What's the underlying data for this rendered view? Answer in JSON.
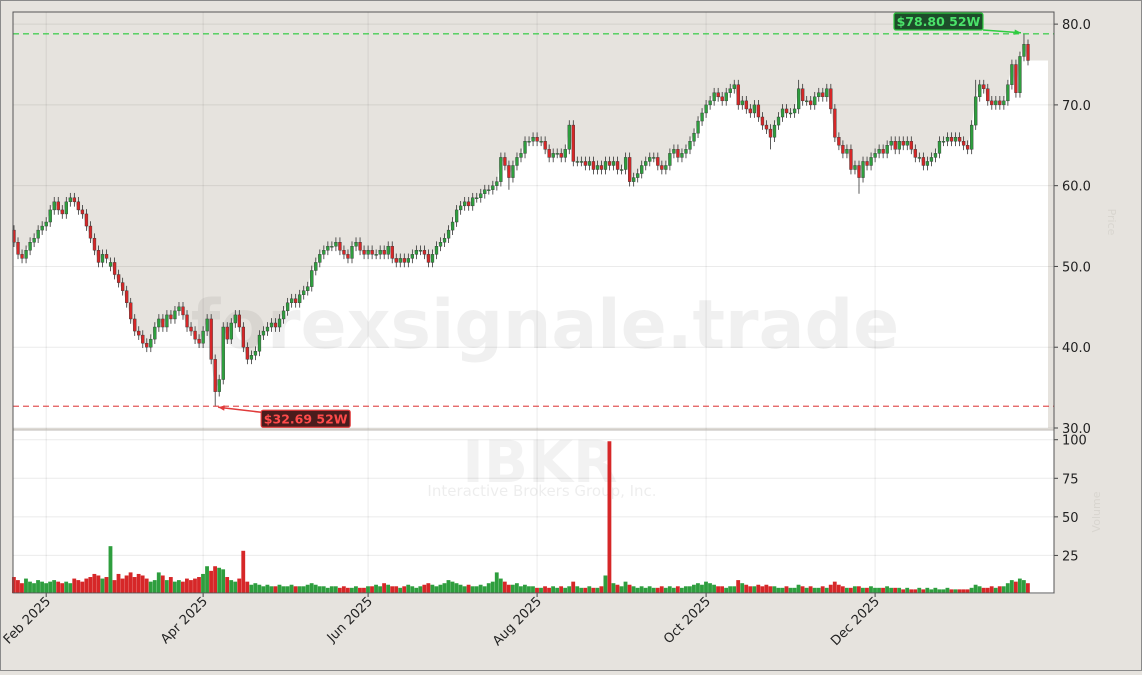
{
  "chart_data": {
    "type": "candlestick",
    "watermark": "forexsignale.trade",
    "symbol": "IBKR",
    "company": "Interactive Brokers Group, Inc.",
    "y_label": "Price",
    "y2_label": "Volume",
    "up_color": "#2e9e3e",
    "down_color": "#d62728",
    "grid": true,
    "categories": [
      null,
      null,
      null,
      null,
      null,
      null,
      null,
      null,
      "Feb 2025",
      null,
      null,
      null,
      null,
      null,
      null,
      null,
      null,
      null,
      null,
      null,
      null,
      null,
      null,
      null,
      null,
      null,
      null,
      null,
      null,
      null,
      null,
      null,
      null,
      null,
      null,
      null,
      null,
      null,
      null,
      null,
      null,
      null,
      null,
      null,
      null,
      null,
      null,
      "Apr 2025",
      null,
      null,
      null,
      null,
      null,
      null,
      null,
      null,
      null,
      null,
      null,
      null,
      null,
      null,
      null,
      null,
      null,
      null,
      null,
      null,
      null,
      null,
      null,
      null,
      null,
      null,
      null,
      null,
      null,
      null,
      null,
      null,
      null,
      null,
      null,
      null,
      null,
      null,
      null,
      null,
      "Jun 2025",
      null,
      null,
      null,
      null,
      null,
      null,
      null,
      null,
      null,
      null,
      null,
      null,
      null,
      null,
      null,
      null,
      null,
      null,
      null,
      null,
      null,
      null,
      null,
      null,
      null,
      null,
      null,
      null,
      null,
      null,
      null,
      null,
      null,
      null,
      null,
      null,
      null,
      null,
      null,
      null,
      null,
      "Aug 2025",
      null,
      null,
      null,
      null,
      null,
      null,
      null,
      null,
      null,
      null,
      null,
      null,
      null,
      null,
      null,
      null,
      null,
      null,
      null,
      null,
      null,
      null,
      null,
      null,
      null,
      null,
      null,
      null,
      null,
      null,
      null,
      null,
      null,
      null,
      null,
      null,
      null,
      null,
      null,
      null,
      null,
      "Oct 2025",
      null,
      null,
      null,
      null,
      null,
      null,
      null,
      null,
      null,
      null,
      null,
      null,
      null,
      null,
      null,
      null,
      null,
      null,
      null,
      null,
      null,
      null,
      null,
      null,
      null,
      null,
      null,
      null,
      null,
      null,
      null,
      null,
      null,
      null,
      null,
      null,
      null,
      null,
      null,
      null,
      null,
      "Dec 2025",
      null,
      null,
      null,
      null,
      null,
      null,
      null,
      null,
      null,
      null,
      null,
      null,
      null,
      null,
      null,
      null,
      null,
      null,
      null,
      null,
      null,
      null,
      null,
      null,
      null,
      null,
      null,
      null,
      null,
      null,
      null,
      null,
      null,
      null,
      null,
      null,
      null,
      null
    ],
    "open": [
      54.5,
      53,
      51.5,
      51,
      52,
      53,
      53.5,
      54.5,
      55,
      55.5,
      57,
      58,
      57,
      56.5,
      58,
      58.5,
      58,
      57,
      56.5,
      55,
      53.5,
      52,
      50.5,
      51.5,
      50,
      50.5,
      49,
      48,
      47,
      45.5,
      43.5,
      42,
      41.5,
      40.5,
      40,
      41,
      42.5,
      43.5,
      42.5,
      44,
      43.5,
      44.5,
      45,
      44,
      42.5,
      42,
      41,
      40.5,
      42,
      43.5,
      38.5,
      34.5,
      36,
      42.5,
      41,
      43,
      44,
      42.5,
      40,
      38.5,
      39,
      39.5,
      41.5,
      42,
      42.5,
      43,
      42.5,
      43.5,
      44.5,
      45.5,
      46,
      45.5,
      46.5,
      47,
      47.5,
      49.5,
      50.5,
      51.5,
      52,
      52.5,
      52.5,
      53,
      52,
      51.5,
      51,
      52.5,
      53,
      52,
      51.5,
      52,
      51.5,
      51.5,
      52,
      51.5,
      52.5,
      51,
      50.5,
      51,
      50.5,
      51,
      51.5,
      52,
      52,
      51.5,
      50.5,
      51.5,
      52.5,
      53,
      53.5,
      54.5,
      55.5,
      57,
      57.5,
      58,
      57.5,
      58.5,
      58.5,
      59,
      59.5,
      59.5,
      60,
      60.5,
      63.5,
      62.5,
      61,
      62.5,
      63.5,
      64,
      65.5,
      65.5,
      66,
      65.5,
      65.5,
      64.5,
      63.5,
      64,
      64,
      63.5,
      64.5,
      67.5,
      63,
      63,
      63,
      62.5,
      63,
      62,
      62.5,
      62,
      63,
      62.5,
      63,
      62,
      62,
      63.5,
      60.5,
      61,
      61.5,
      62.5,
      63,
      63.5,
      63.5,
      62.5,
      62,
      62.5,
      64,
      64.5,
      63.5,
      64,
      64.5,
      65.5,
      66.5,
      68,
      69,
      70,
      70.5,
      71.5,
      71,
      70.5,
      71.5,
      72,
      72.5,
      70,
      70.5,
      69.5,
      69,
      70,
      68.5,
      67.5,
      67,
      66,
      67.5,
      68.5,
      69.5,
      69,
      69,
      69.5,
      72,
      70.5,
      70.5,
      70,
      71,
      71.5,
      71,
      72,
      69.5,
      66,
      65,
      64,
      64.5,
      62,
      62.5,
      61,
      63,
      62.5,
      63.5,
      64,
      64.5,
      64,
      65,
      65.5,
      64.5,
      65.5,
      65,
      65.5,
      64.5,
      63.5,
      63.5,
      62.5,
      63,
      63.5,
      64,
      65.5,
      65.5,
      66,
      65.5,
      66,
      65.5,
      65,
      64.5,
      67.5,
      71,
      72.5,
      72,
      70.5,
      70,
      70.5,
      70,
      70.5,
      72.5,
      75,
      71.5,
      76,
      77.5
    ],
    "high": [
      55.1,
      53.6,
      52.1,
      52.6,
      53.6,
      54.1,
      55.1,
      55.6,
      56.1,
      57.6,
      58.6,
      58.6,
      57.6,
      58.6,
      59.1,
      59.1,
      58.6,
      57.6,
      57.1,
      55.6,
      54.1,
      52.6,
      52.1,
      52.1,
      51.1,
      51.1,
      49.6,
      48.6,
      47.6,
      46.1,
      44.1,
      42.6,
      42.1,
      41.1,
      41.6,
      43.1,
      44.1,
      44.1,
      44.6,
      44.6,
      45.1,
      45.6,
      45.6,
      44.6,
      43.1,
      42.6,
      41.6,
      42.6,
      44.1,
      44.1,
      39.1,
      36.6,
      43.1,
      43.1,
      43.6,
      44.6,
      44.6,
      43.1,
      40.6,
      39.6,
      40.1,
      42.1,
      42.6,
      43.1,
      43.6,
      43.6,
      44.1,
      45.1,
      46.1,
      46.6,
      46.6,
      47.1,
      47.6,
      48.1,
      50.1,
      51.1,
      52.1,
      52.6,
      53.1,
      53.1,
      53.6,
      53.6,
      52.6,
      52.1,
      53.1,
      53.6,
      53.6,
      52.6,
      52.6,
      52.6,
      52.1,
      52.6,
      52.6,
      53.1,
      53.1,
      51.6,
      51.6,
      51.6,
      51.6,
      52.1,
      52.6,
      52.6,
      52.6,
      52.1,
      52.1,
      53.1,
      53.6,
      54.1,
      55.1,
      56.1,
      57.6,
      58.1,
      58.6,
      58.6,
      59.1,
      59.1,
      59.6,
      60.1,
      60.1,
      60.6,
      61.1,
      64.1,
      64.1,
      63.1,
      63.1,
      64.1,
      64.6,
      66.1,
      66.1,
      66.6,
      66.6,
      66.1,
      66.1,
      65.1,
      64.6,
      64.6,
      64.6,
      65.1,
      68.1,
      68.1,
      63.6,
      63.6,
      63.6,
      63.6,
      63.6,
      63.1,
      63.1,
      63.6,
      63.6,
      63.6,
      63.6,
      62.6,
      64.1,
      64.1,
      61.6,
      62.1,
      63.1,
      63.6,
      64.1,
      64.1,
      64.1,
      63.1,
      63.1,
      64.6,
      65.1,
      65.1,
      64.6,
      65.1,
      66.1,
      67.1,
      68.6,
      69.6,
      70.6,
      71.1,
      72.1,
      72.1,
      71.6,
      72.1,
      72.6,
      73.1,
      73.1,
      71.1,
      71.1,
      70.1,
      70.6,
      70.6,
      69.1,
      68.1,
      67.6,
      68.1,
      69.1,
      70.1,
      70.1,
      69.6,
      70.1,
      73.1,
      72.6,
      71.1,
      71.1,
      71.6,
      72.1,
      72.1,
      72.6,
      72.6,
      70.1,
      66.6,
      65.6,
      65.1,
      65.1,
      63.1,
      63.1,
      63.6,
      63.6,
      64.1,
      64.6,
      65.1,
      65.1,
      65.6,
      66.1,
      66.1,
      66.1,
      66.1,
      66.1,
      66.1,
      65.1,
      64.1,
      64.1,
      63.6,
      64.1,
      64.6,
      66.1,
      66.1,
      66.6,
      66.6,
      66.6,
      66.6,
      66.1,
      65.6,
      68.1,
      73.1,
      73.1,
      73.1,
      72.6,
      71.1,
      71.1,
      71.1,
      71.1,
      73.1,
      75.6,
      75.6,
      76.6,
      78.8,
      78.1
    ],
    "low": [
      52.4,
      50.9,
      50.4,
      50.4,
      51.4,
      52.4,
      52.9,
      53.9,
      54.4,
      54.9,
      56.4,
      56.4,
      55.9,
      55.9,
      57.4,
      57.4,
      56.4,
      55.9,
      54.4,
      52.9,
      51.4,
      49.9,
      49.9,
      50.4,
      49.4,
      48.4,
      47.4,
      46.4,
      44.9,
      42.9,
      41.4,
      40.9,
      39.9,
      39.4,
      39.4,
      40.4,
      41.9,
      41.9,
      41.9,
      42.9,
      42.9,
      43.9,
      43.4,
      41.9,
      41.4,
      40.4,
      39.9,
      39.9,
      41.4,
      37.9,
      32.69,
      33.9,
      35.4,
      40.4,
      40.4,
      42.4,
      41.9,
      39.4,
      37.9,
      37.9,
      38.4,
      38.9,
      40.9,
      41.4,
      41.9,
      41.9,
      41.9,
      42.9,
      43.9,
      44.9,
      44.9,
      44.9,
      45.9,
      46.4,
      46.9,
      48.9,
      49.9,
      50.9,
      51.4,
      51.9,
      51.9,
      51.4,
      50.9,
      50.4,
      50.4,
      51.9,
      51.4,
      50.9,
      50.9,
      50.9,
      50.9,
      50.9,
      50.9,
      50.9,
      50.4,
      49.9,
      49.9,
      49.9,
      49.9,
      50.4,
      50.9,
      51.4,
      50.9,
      49.9,
      49.9,
      50.9,
      51.9,
      52.4,
      52.9,
      53.9,
      54.9,
      56.4,
      56.9,
      56.9,
      56.9,
      57.9,
      57.9,
      58.4,
      58.9,
      58.9,
      59.4,
      59.9,
      61.9,
      59.5,
      60.4,
      61.9,
      62.9,
      63.4,
      64.9,
      64.9,
      64.9,
      64.9,
      63.9,
      62.9,
      62.9,
      63.4,
      62.9,
      62.9,
      63.9,
      62.4,
      62.4,
      62.4,
      61.9,
      61.9,
      61.4,
      61.4,
      61.4,
      61.4,
      61.9,
      61.9,
      61.4,
      61.4,
      61.4,
      59.9,
      59.9,
      60.4,
      60.9,
      61.9,
      62.4,
      62.9,
      61.9,
      61.4,
      61.4,
      61.9,
      63.4,
      62.9,
      62.9,
      63.4,
      63.9,
      64.9,
      65.9,
      67.4,
      68.4,
      69.4,
      69.9,
      70.4,
      69.9,
      69.9,
      70.9,
      71.4,
      69.4,
      69.4,
      68.9,
      68.4,
      68.4,
      67.9,
      66.9,
      66.4,
      64.5,
      65.4,
      66.9,
      67.9,
      68.4,
      68.4,
      68.4,
      68.9,
      69.9,
      69.9,
      69.4,
      69.4,
      70.4,
      70.4,
      70.4,
      68.9,
      65.4,
      64.4,
      63.4,
      63.4,
      61.4,
      61.4,
      59,
      60.4,
      61.9,
      61.9,
      62.9,
      63.4,
      63.4,
      63.4,
      64.4,
      63.9,
      63.9,
      64.4,
      64.4,
      63.9,
      62.9,
      62.9,
      61.9,
      61.9,
      62.4,
      62.9,
      63.4,
      64.9,
      64.9,
      64.9,
      64.9,
      64.9,
      64.4,
      63.9,
      63.9,
      66.9,
      70.4,
      71.4,
      69.9,
      69.4,
      69.4,
      69.4,
      69.4,
      69.9,
      71.9,
      70.9,
      70.9,
      75.4,
      74.9
    ],
    "close": [
      53,
      51.5,
      51,
      52,
      53,
      53.5,
      54.5,
      55,
      55.5,
      57,
      58,
      57,
      56.5,
      58,
      58.5,
      58,
      57,
      56.5,
      55,
      53.5,
      52,
      50.5,
      51.5,
      51,
      50.5,
      49,
      48,
      47,
      45.5,
      43.5,
      42,
      41.5,
      40.5,
      40,
      41,
      42.5,
      43.5,
      42.5,
      44,
      43.5,
      44.5,
      45,
      44,
      42.5,
      42,
      41,
      40.5,
      42,
      43.5,
      38.5,
      34.5,
      36,
      42.5,
      41,
      43,
      44,
      42.5,
      40,
      38.5,
      39,
      39.5,
      41.5,
      42,
      42.5,
      43,
      42.5,
      43.5,
      44.5,
      45.5,
      46,
      45.5,
      46.5,
      47,
      47.5,
      49.5,
      50.5,
      51.5,
      52,
      52.5,
      52.5,
      53,
      52,
      51.5,
      51,
      52.5,
      53,
      52,
      51.5,
      52,
      51.5,
      51.5,
      52,
      51.5,
      52.5,
      51,
      50.5,
      51,
      50.5,
      51,
      51.5,
      52,
      52,
      51.5,
      50.5,
      51.5,
      52.5,
      53,
      53.5,
      54.5,
      55.5,
      57,
      57.5,
      58,
      57.5,
      58.5,
      58.5,
      59,
      59.5,
      59.5,
      60,
      60.5,
      63.5,
      62.5,
      61,
      62.5,
      63.5,
      64,
      65.5,
      65.5,
      66,
      65.5,
      65.5,
      64.5,
      63.5,
      64,
      64,
      63.5,
      64.5,
      67.5,
      63,
      63,
      63,
      62.5,
      63,
      62,
      62.5,
      62,
      63,
      62.5,
      63,
      62,
      62,
      63.5,
      60.5,
      61,
      61.5,
      62.5,
      63,
      63.5,
      63.5,
      62.5,
      62,
      62.5,
      64,
      64.5,
      63.5,
      64,
      64.5,
      65.5,
      66.5,
      68,
      69,
      70,
      70.5,
      71.5,
      71,
      70.5,
      71.5,
      72,
      72.5,
      70,
      70.5,
      69.5,
      69,
      70,
      68.5,
      67.5,
      67,
      66,
      67.5,
      68.5,
      69.5,
      69,
      69,
      69.5,
      72,
      70.5,
      70.5,
      70,
      71,
      71.5,
      71,
      72,
      69.5,
      66,
      65,
      64,
      64.5,
      62,
      62.5,
      61,
      63,
      62.5,
      63.5,
      64,
      64.5,
      64,
      65,
      65.5,
      64.5,
      65.5,
      65,
      65.5,
      64.5,
      63.5,
      63.5,
      62.5,
      63,
      63.5,
      64,
      65.5,
      65.5,
      66,
      65.5,
      66,
      65.5,
      65,
      64.5,
      67.5,
      71,
      72.5,
      72,
      70.5,
      70,
      70.5,
      70,
      70.5,
      72.5,
      75,
      71.5,
      76,
      77.5,
      75.5
    ],
    "volume": [
      11,
      9,
      7,
      10,
      8,
      7,
      9,
      8,
      7,
      8,
      9,
      8,
      7,
      8,
      7,
      10,
      9,
      8,
      10,
      11,
      13,
      12,
      10,
      11,
      31,
      9,
      13,
      10,
      12,
      14,
      11,
      13,
      12,
      10,
      8,
      9,
      14,
      12,
      9,
      11,
      8,
      9,
      8,
      10,
      9,
      10,
      11,
      13,
      18,
      15,
      18,
      17,
      16,
      11,
      9,
      8,
      10,
      28,
      8,
      6,
      7,
      6,
      5,
      6,
      5,
      5,
      6,
      5,
      5,
      6,
      5,
      5,
      5,
      6,
      7,
      6,
      5,
      5,
      4,
      5,
      5,
      4,
      5,
      4,
      4,
      5,
      4,
      4,
      5,
      5,
      6,
      5,
      7,
      6,
      5,
      5,
      4,
      5,
      6,
      5,
      4,
      5,
      6,
      7,
      6,
      5,
      6,
      7,
      9,
      8,
      7,
      6,
      5,
      6,
      5,
      5,
      6,
      5,
      7,
      8,
      14,
      10,
      8,
      6,
      6,
      7,
      5,
      6,
      5,
      5,
      4,
      4,
      5,
      4,
      5,
      4,
      5,
      4,
      5,
      8,
      5,
      4,
      4,
      5,
      4,
      4,
      5,
      12,
      99,
      7,
      6,
      5,
      8,
      6,
      5,
      4,
      5,
      4,
      5,
      4,
      4,
      5,
      4,
      5,
      4,
      5,
      4,
      5,
      5,
      6,
      7,
      6,
      8,
      7,
      6,
      5,
      5,
      4,
      5,
      5,
      9,
      7,
      6,
      5,
      5,
      6,
      5,
      6,
      5,
      5,
      4,
      4,
      5,
      4,
      4,
      6,
      5,
      4,
      5,
      4,
      4,
      5,
      4,
      6,
      8,
      6,
      5,
      4,
      4,
      5,
      5,
      4,
      4,
      5,
      4,
      4,
      4,
      5,
      4,
      4,
      4,
      3,
      4,
      3,
      3,
      4,
      3,
      4,
      3,
      4,
      3,
      3,
      4,
      3,
      3,
      3,
      3,
      3,
      4,
      6,
      5,
      4,
      4,
      5,
      4,
      5,
      5,
      7,
      9,
      8,
      10,
      9,
      7
    ],
    "ylim": [
      30,
      81.5
    ],
    "yticks": [
      {
        "value": 30,
        "label": "30.0"
      },
      {
        "value": 40,
        "label": "40.0"
      },
      {
        "value": 50,
        "label": "50.0"
      },
      {
        "value": 60,
        "label": "60.0"
      },
      {
        "value": 70,
        "label": "70.0"
      },
      {
        "value": 80,
        "label": "80.0"
      }
    ],
    "y2lim": [
      0,
      105
    ],
    "y2ticks": [
      25,
      50,
      75,
      100
    ],
    "annotations": [
      {
        "label": "$78.80 52W",
        "value": 78.8,
        "color": "#2ecc40",
        "box_color": "#1d4d2a",
        "text_color": "#4be36a"
      },
      {
        "label": "$32.69 52W",
        "value": 32.69,
        "color": "#e03a3a",
        "box_color": "#4a1c1c",
        "text_color": "#ff4a4a"
      }
    ]
  }
}
